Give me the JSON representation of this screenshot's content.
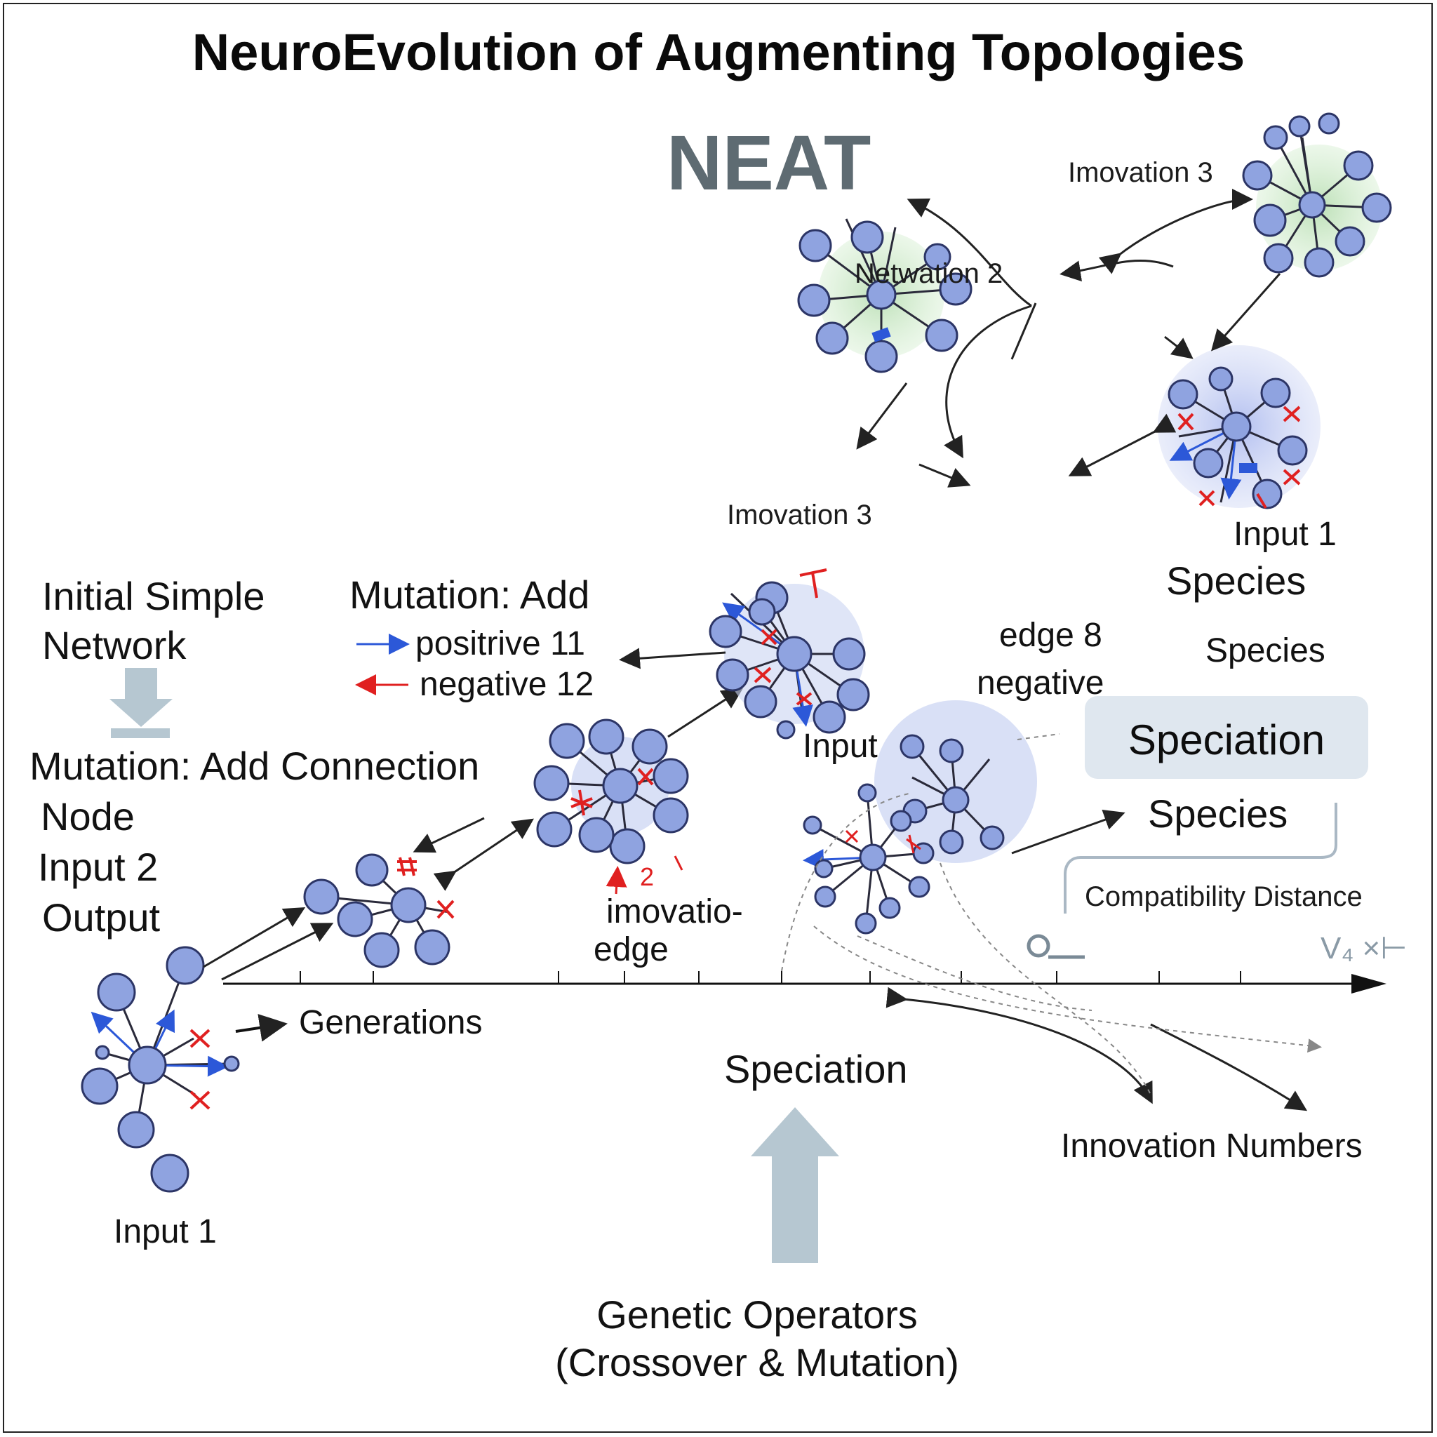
{
  "title": "NeuroEvolution of Augmenting Topologies",
  "subtitle": "NEAT",
  "labels": {
    "initial_simple": "Initial Simple",
    "network": "Network",
    "mutation_add_connection": "Mutation: Add Connection",
    "node": "Node",
    "input_2": "Input 2",
    "output": "Output",
    "input_1_bottom": "Input 1",
    "generations": "Generations",
    "mutation_add": "Mutation: Add",
    "positive": "positrive 11",
    "negative": "negative 12",
    "imovation_3_mid": "Imovation 3",
    "imovatio_edge_1": "imovatio-",
    "imovatio_edge_2": "edge",
    "mark_2": "2",
    "netwation_2": "Netwation 2",
    "imovation_3_top": "Imovation 3",
    "input_1_right": "Input 1",
    "species_1": "Species",
    "species_2": "Species",
    "species_3": "Species",
    "edge_8": "edge 8",
    "negative_mid": "negative",
    "input_mid": "Input",
    "speciation_box": "Speciation",
    "compatibility_distance": "Compatibility Distance",
    "axis_end": "V₄ ×⊢",
    "speciation_bottom": "Speciation",
    "innovation_numbers": "Innovation Numbers",
    "genetic_operators_1": "Genetic Operators",
    "genetic_operators_2": "(Crossover & Mutation)"
  },
  "colors": {
    "node_blue": "#8fa3e0",
    "node_stroke": "#2c3566",
    "green_halo": "#c8e8c4",
    "blue_halo": "#c9d3f2",
    "mutation_red": "#e02020",
    "positive_blue": "#2c58d8",
    "arrow_grey": "#b6c7d1"
  }
}
